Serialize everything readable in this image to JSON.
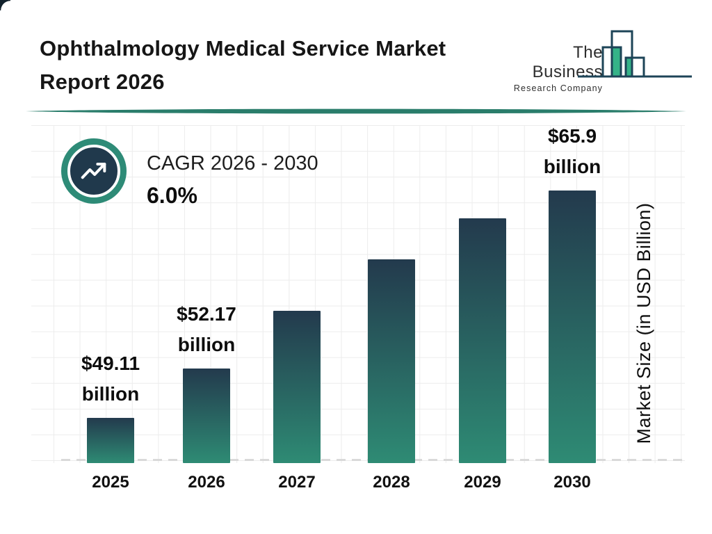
{
  "page": {
    "title_line1": "Ophthalmology Medical Service Market",
    "title_line2": "Report 2026"
  },
  "logo": {
    "name_line1": "The Business",
    "name_line2": "Research Company"
  },
  "cagr": {
    "label": "CAGR 2026 - 2030",
    "value": "6.0%"
  },
  "chart_data": {
    "type": "bar",
    "title": "Ophthalmology Medical Service Market Report 2026",
    "categories": [
      "2025",
      "2026",
      "2027",
      "2028",
      "2029",
      "2030"
    ],
    "values": [
      49.11,
      52.17,
      55.3,
      58.62,
      62.14,
      65.9
    ],
    "bar_labels": [
      [
        "$49.11",
        "billion"
      ],
      [
        "$52.17",
        "billion"
      ],
      null,
      null,
      null,
      [
        "$65.9",
        "billion"
      ]
    ],
    "xlabel": "",
    "ylabel": "Market Size (in USD Billion)",
    "ylim": [
      45,
      67
    ],
    "grid": true,
    "legend": "none",
    "cagr_pct": 6.0,
    "cagr_period": "2026 - 2030",
    "bar_heights_frac": [
      0.135,
      0.282,
      0.454,
      0.608,
      0.73,
      0.813
    ],
    "colors": {
      "bar_top": "#233a4d",
      "bar_bottom": "#2e8b74",
      "divider_teal": "#2a7d6b",
      "ring_green": "#2e8b77",
      "circle_navy": "#20394c",
      "logo_green": "#35b388",
      "logo_stroke": "#1d4457"
    }
  }
}
